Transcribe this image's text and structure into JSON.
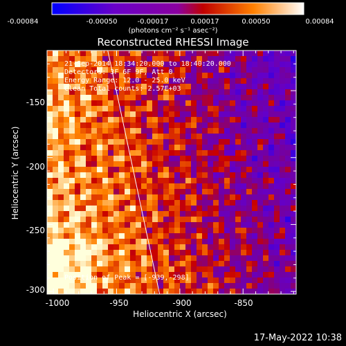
{
  "colorbar": {
    "ticks": [
      "-0.00084",
      "-0.00050",
      "-0.00017",
      "0.00017",
      "0.00050",
      "0.00084"
    ],
    "unit_label": "(photons cm⁻² s⁻¹ asec⁻²)",
    "range": [
      -0.00084,
      0.00084
    ]
  },
  "chart_data": {
    "type": "heatmap",
    "title": "Reconstructed RHESSI Image",
    "xlabel": "Heliocentric X (arcsec)",
    "ylabel": "Heliocentric Y (arcsec)",
    "xlim": [
      -1005,
      -808
    ],
    "ylim": [
      -302,
      -120
    ],
    "x_ticks": [
      "-1000",
      "-950",
      "-900",
      "-850"
    ],
    "y_ticks": [
      "-150",
      "-200",
      "-250",
      "-300"
    ],
    "annotations": {
      "time": "21-Sep-2014 18:34:20.000 to 18:40:20.000",
      "detectors": "Detectors: 3F 6F 9F, Att 0",
      "energy": "Energy Range: 12.0 - 25.0 keV",
      "clean": "Clean    Total counts: 2.57E+03",
      "peak": "Position of Peak = [-939,-298]"
    },
    "peak_position": [
      -939,
      -298
    ],
    "limb_line": [
      [
        -957,
        -120
      ],
      [
        -916,
        -302
      ]
    ]
  },
  "footer": {
    "date": "17-May-2022 10:38"
  }
}
